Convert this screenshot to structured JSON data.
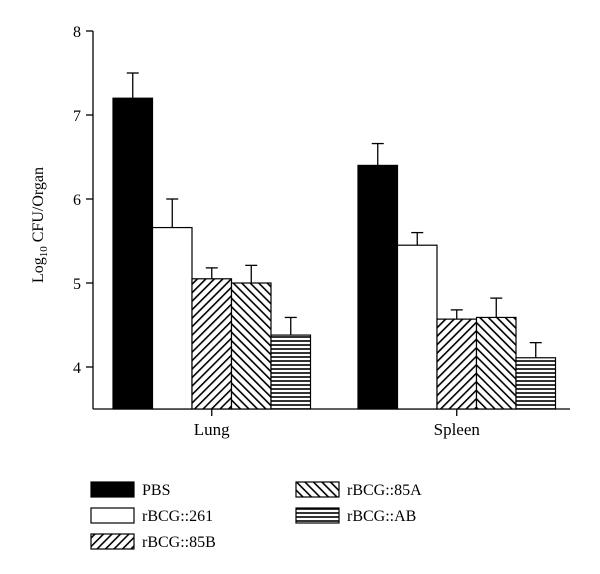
{
  "chart_data": {
    "type": "bar",
    "title": "",
    "ylabel_prefix": "Log",
    "ylabel_subscript": "10",
    "ylabel_suffix": " CFU/Organ",
    "xlabel": "",
    "categories": [
      "Lung",
      "Spleen"
    ],
    "ylim": [
      3.5,
      8
    ],
    "yticks": [
      4,
      5,
      6,
      7,
      8
    ],
    "series": [
      {
        "name": "PBS",
        "pattern": "solid",
        "values": [
          7.2,
          6.4
        ],
        "errors": [
          0.3,
          0.26
        ]
      },
      {
        "name": "rBCG::261",
        "pattern": "empty",
        "values": [
          5.66,
          5.45
        ],
        "errors": [
          0.34,
          0.15
        ]
      },
      {
        "name": "rBCG::85B",
        "pattern": "diag-right",
        "values": [
          5.05,
          4.57
        ],
        "errors": [
          0.13,
          0.11
        ]
      },
      {
        "name": "rBCG::85A",
        "pattern": "diag-left",
        "values": [
          5.0,
          4.59
        ],
        "errors": [
          0.21,
          0.23
        ]
      },
      {
        "name": "rBCG::AB",
        "pattern": "horizontal",
        "values": [
          4.38,
          4.11
        ],
        "errors": [
          0.21,
          0.18
        ]
      }
    ],
    "grid": false,
    "legend_position": "bottom"
  }
}
